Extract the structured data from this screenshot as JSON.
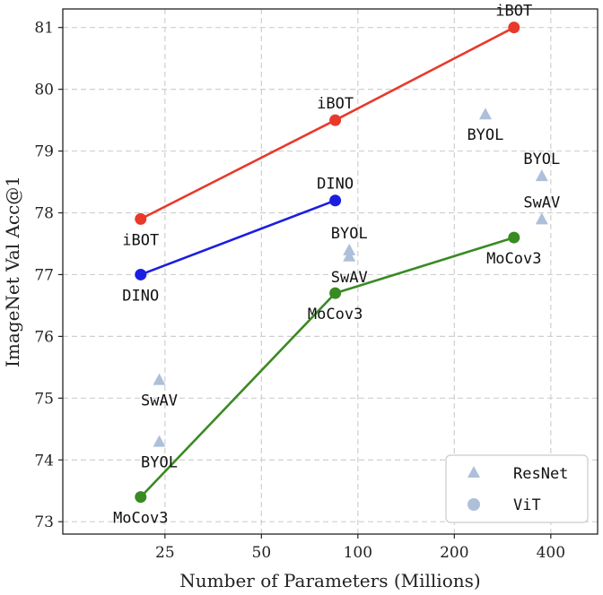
{
  "chart_data": {
    "type": "scatter",
    "xlabel": "Number of Parameters (Millions)",
    "ylabel": "ImageNet Val Acc@1",
    "x_scale": "log",
    "xlim": [
      12,
      560
    ],
    "ylim": [
      72.8,
      81.3
    ],
    "x_ticks": [
      25,
      50,
      100,
      200,
      400
    ],
    "x_tick_labels": [
      "25",
      "50",
      "100",
      "200",
      "400"
    ],
    "y_ticks": [
      73,
      74,
      75,
      76,
      77,
      78,
      79,
      80,
      81
    ],
    "y_tick_labels": [
      "73",
      "74",
      "75",
      "76",
      "77",
      "78",
      "79",
      "80",
      "81"
    ],
    "grid": true,
    "legend_position": "bottom-right",
    "legend": [
      {
        "label": "ResNet",
        "marker": "triangle",
        "color": "#aebfda"
      },
      {
        "label": "ViT",
        "marker": "circle",
        "color": "#aebfda"
      }
    ],
    "lines": [
      {
        "color": "#e8392a",
        "points": [
          {
            "x": 21,
            "y": 77.9,
            "label": "iBOT",
            "label_pos": "below"
          },
          {
            "x": 85,
            "y": 79.5,
            "label": "iBOT",
            "label_pos": "above"
          },
          {
            "x": 307,
            "y": 81.0,
            "label": "iBOT",
            "label_pos": "above"
          }
        ]
      },
      {
        "color": "#1a1ee0",
        "points": [
          {
            "x": 21,
            "y": 77.0,
            "label": "DINO",
            "label_pos": "below"
          },
          {
            "x": 85,
            "y": 78.2,
            "label": "DINO",
            "label_pos": "above"
          }
        ]
      },
      {
        "color": "#3a8a23",
        "points": [
          {
            "x": 21,
            "y": 73.4,
            "label": "MoCov3",
            "label_pos": "below"
          },
          {
            "x": 85,
            "y": 76.7,
            "label": "MoCov3",
            "label_pos": "below"
          },
          {
            "x": 307,
            "y": 77.6,
            "label": "MoCov3",
            "label_pos": "below"
          }
        ]
      }
    ],
    "resnet_points": [
      {
        "x": 24,
        "y": 75.3,
        "label": "SwAV",
        "label_pos": "below"
      },
      {
        "x": 24,
        "y": 74.3,
        "label": "BYOL",
        "label_pos": "below"
      },
      {
        "x": 94,
        "y": 77.4,
        "label": "BYOL",
        "label_pos": "above"
      },
      {
        "x": 94,
        "y": 77.3,
        "label": "SwAV",
        "label_pos": "below"
      },
      {
        "x": 250,
        "y": 79.6,
        "label": "BYOL",
        "label_pos": "below"
      },
      {
        "x": 375,
        "y": 78.6,
        "label": "BYOL",
        "label_pos": "above"
      },
      {
        "x": 375,
        "y": 77.9,
        "label": "SwAV",
        "label_pos": "above"
      }
    ],
    "resnet_color": "#aebfda"
  }
}
